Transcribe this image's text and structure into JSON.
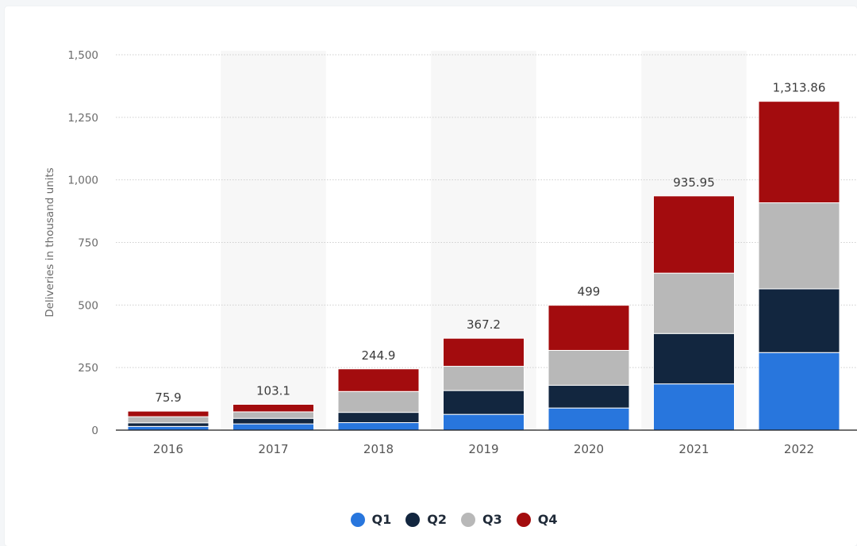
{
  "chart_data": {
    "type": "bar",
    "stacked": true,
    "ylabel": "Deliveries in thousand units",
    "ylim": [
      0,
      1500
    ],
    "yticks": [
      0,
      250,
      500,
      750,
      1000,
      1250,
      1500
    ],
    "ytick_labels": [
      "0",
      "250",
      "500",
      "750",
      "1,000",
      "1,250",
      "1,500"
    ],
    "categories": [
      "2016",
      "2017",
      "2018",
      "2019",
      "2020",
      "2021",
      "2022"
    ],
    "series": [
      {
        "name": "Q1",
        "color": "#2876dd",
        "values": [
          14.8,
          25.0,
          30.0,
          63.0,
          88.4,
          184.8,
          310.0
        ]
      },
      {
        "name": "Q2",
        "color": "#12263f",
        "values": [
          14.4,
          22.0,
          41.0,
          95.2,
          90.7,
          201.3,
          254.7
        ]
      },
      {
        "name": "Q3",
        "color": "#b8b8b8",
        "values": [
          24.5,
          26.1,
          83.5,
          97.0,
          139.6,
          241.3,
          343.8
        ]
      },
      {
        "name": "Q4",
        "color": "#a30c0e",
        "values": [
          22.2,
          30.0,
          90.4,
          112.0,
          180.3,
          308.6,
          405.4
        ]
      }
    ],
    "totals": [
      "75.9",
      "103.1",
      "244.9",
      "367.2",
      "499",
      "935.95",
      "1,313.86"
    ],
    "grid": true,
    "legend_position": "bottom"
  }
}
